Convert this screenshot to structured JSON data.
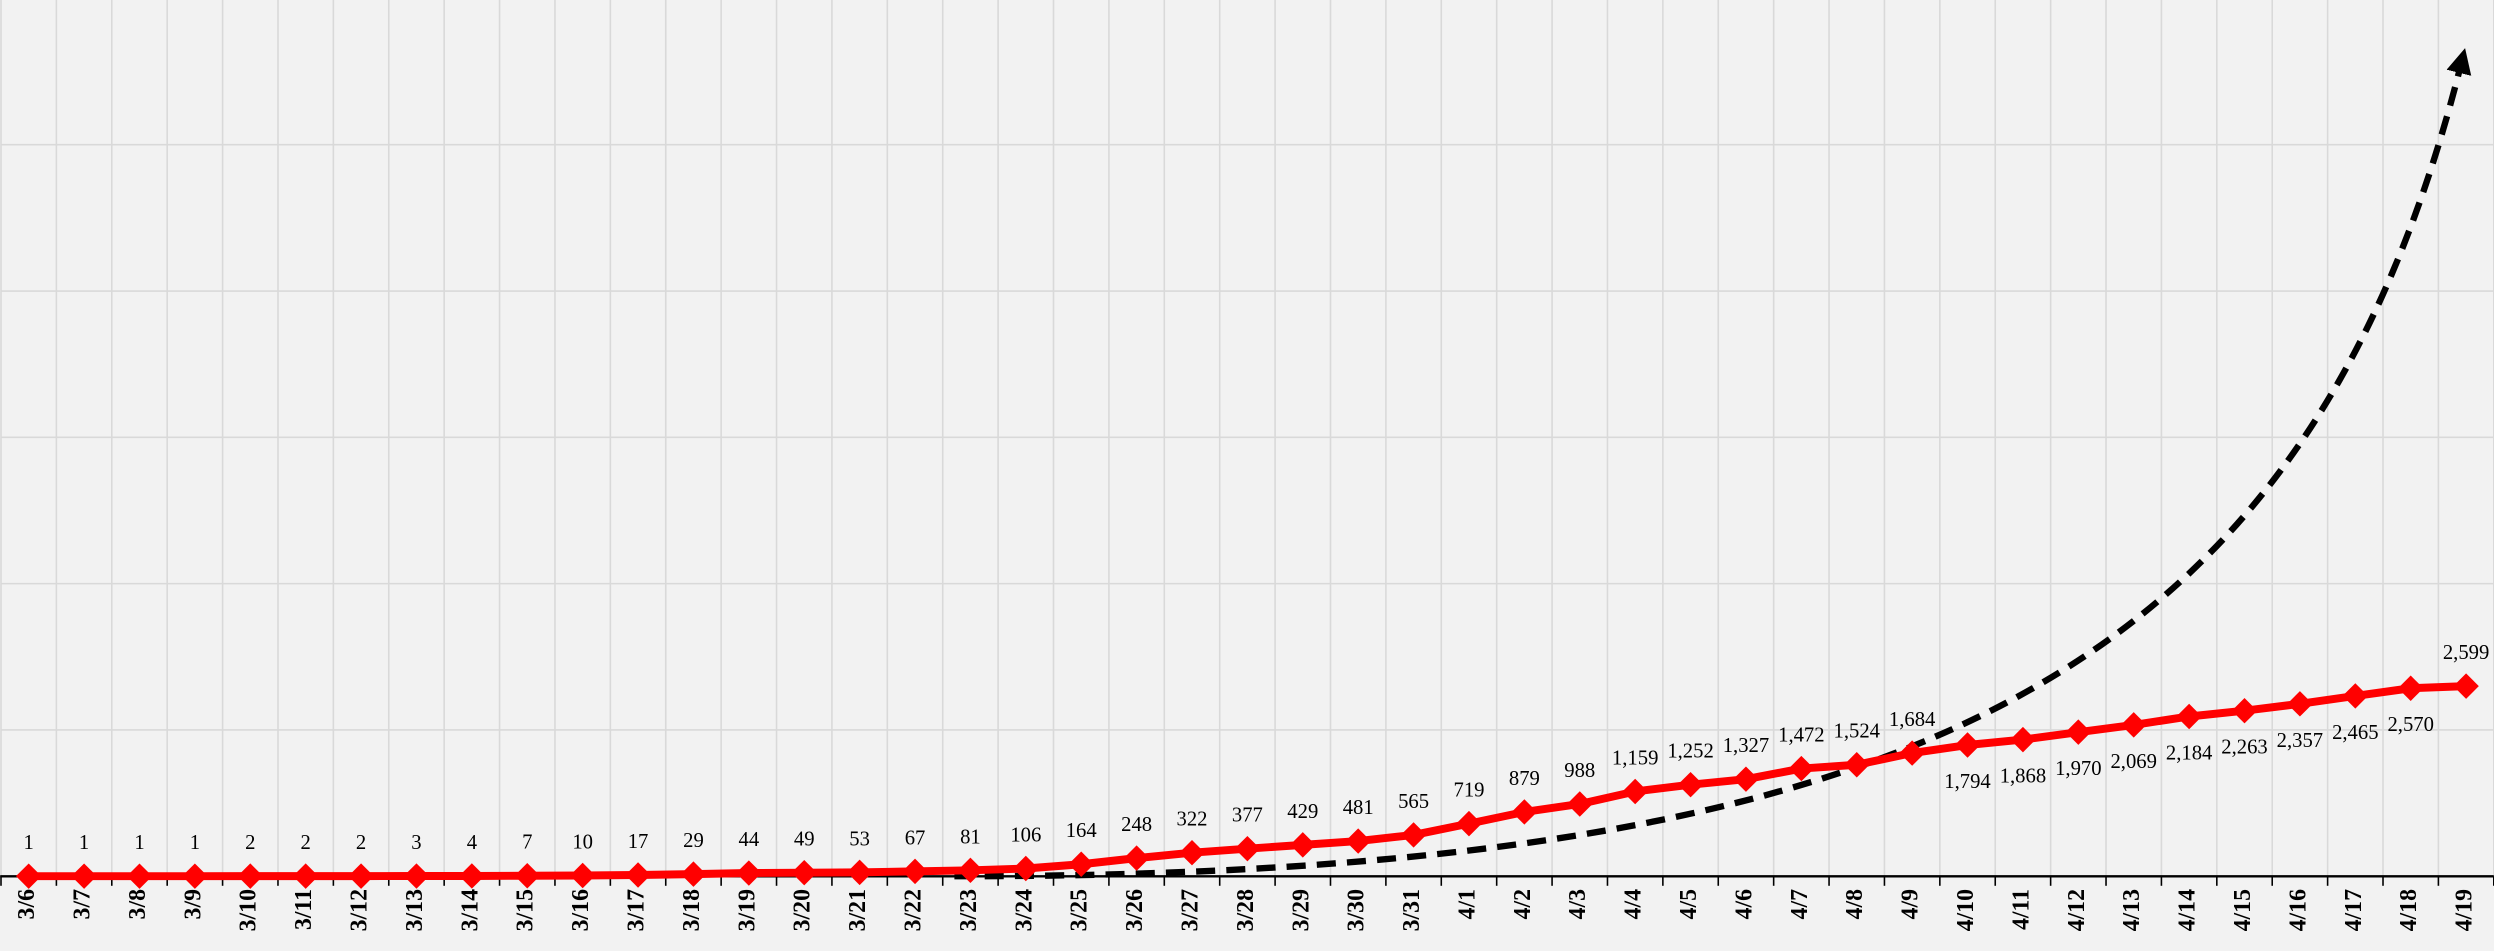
{
  "chart_data": {
    "type": "line",
    "categories": [
      "3/6",
      "3/7",
      "3/8",
      "3/9",
      "3/10",
      "3/11",
      "3/12",
      "3/13",
      "3/14",
      "3/15",
      "3/16",
      "3/17",
      "3/18",
      "3/19",
      "3/20",
      "3/21",
      "3/22",
      "3/23",
      "3/24",
      "3/25",
      "3/26",
      "3/27",
      "3/28",
      "3/29",
      "3/30",
      "3/31",
      "4/1",
      "4/2",
      "4/3",
      "4/4",
      "4/5",
      "4/6",
      "4/7",
      "4/8",
      "4/9",
      "4/10",
      "4/11",
      "4/12",
      "4/13",
      "4/14",
      "4/15",
      "4/16",
      "4/17",
      "4/18",
      "4/19"
    ],
    "values": [
      1,
      1,
      1,
      1,
      2,
      2,
      2,
      3,
      4,
      7,
      10,
      17,
      29,
      44,
      49,
      53,
      67,
      81,
      106,
      164,
      248,
      322,
      377,
      429,
      481,
      565,
      719,
      879,
      988,
      1159,
      1252,
      1327,
      1472,
      1524,
      1684,
      1794,
      1868,
      1970,
      2069,
      2184,
      2263,
      2357,
      2465,
      2570,
      2599
    ],
    "value_labels": [
      "1",
      "1",
      "1",
      "1",
      "2",
      "2",
      "2",
      "3",
      "4",
      "7",
      "10",
      "17",
      "29",
      "44",
      "49",
      "53",
      "67",
      "81",
      "106",
      "164",
      "248",
      "322",
      "377",
      "429",
      "481",
      "565",
      "719",
      "879",
      "988",
      "1,159",
      "1,252",
      "1,327",
      "1,472",
      "1,524",
      "1,684",
      "1,794",
      "1,868",
      "1,970",
      "2,069",
      "2,184",
      "2,263",
      "2,357",
      "2,465",
      "2,570",
      "2,599"
    ],
    "color": "#ff0000",
    "ylim": [
      0,
      12000
    ],
    "yticks": [
      0,
      2000,
      4000,
      6000,
      8000,
      10000,
      12000
    ],
    "grid": true
  }
}
